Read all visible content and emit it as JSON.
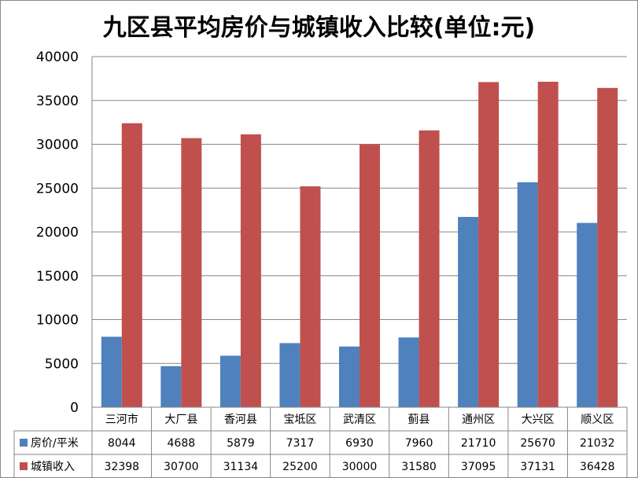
{
  "chart_data": {
    "type": "bar",
    "title": "九区县平均房价与城镇收入比较(单位:元)",
    "categories": [
      "三河市",
      "大厂县",
      "香河县",
      "宝坻区",
      "武清区",
      "蓟县",
      "通州区",
      "大兴区",
      "顺义区"
    ],
    "series": [
      {
        "name": "房价/平米",
        "color": "#4F81BD",
        "values": [
          8044,
          4688,
          5879,
          7317,
          6930,
          7960,
          21710,
          25670,
          21032
        ]
      },
      {
        "name": "城镇收入",
        "color": "#C0504D",
        "values": [
          32398,
          30700,
          31134,
          25200,
          30000,
          31580,
          37095,
          37131,
          36428
        ]
      }
    ],
    "ylim": [
      0,
      40000
    ],
    "yticks": [
      0,
      5000,
      10000,
      15000,
      20000,
      25000,
      30000,
      35000,
      40000
    ],
    "grid": true,
    "legend": "data-table"
  }
}
